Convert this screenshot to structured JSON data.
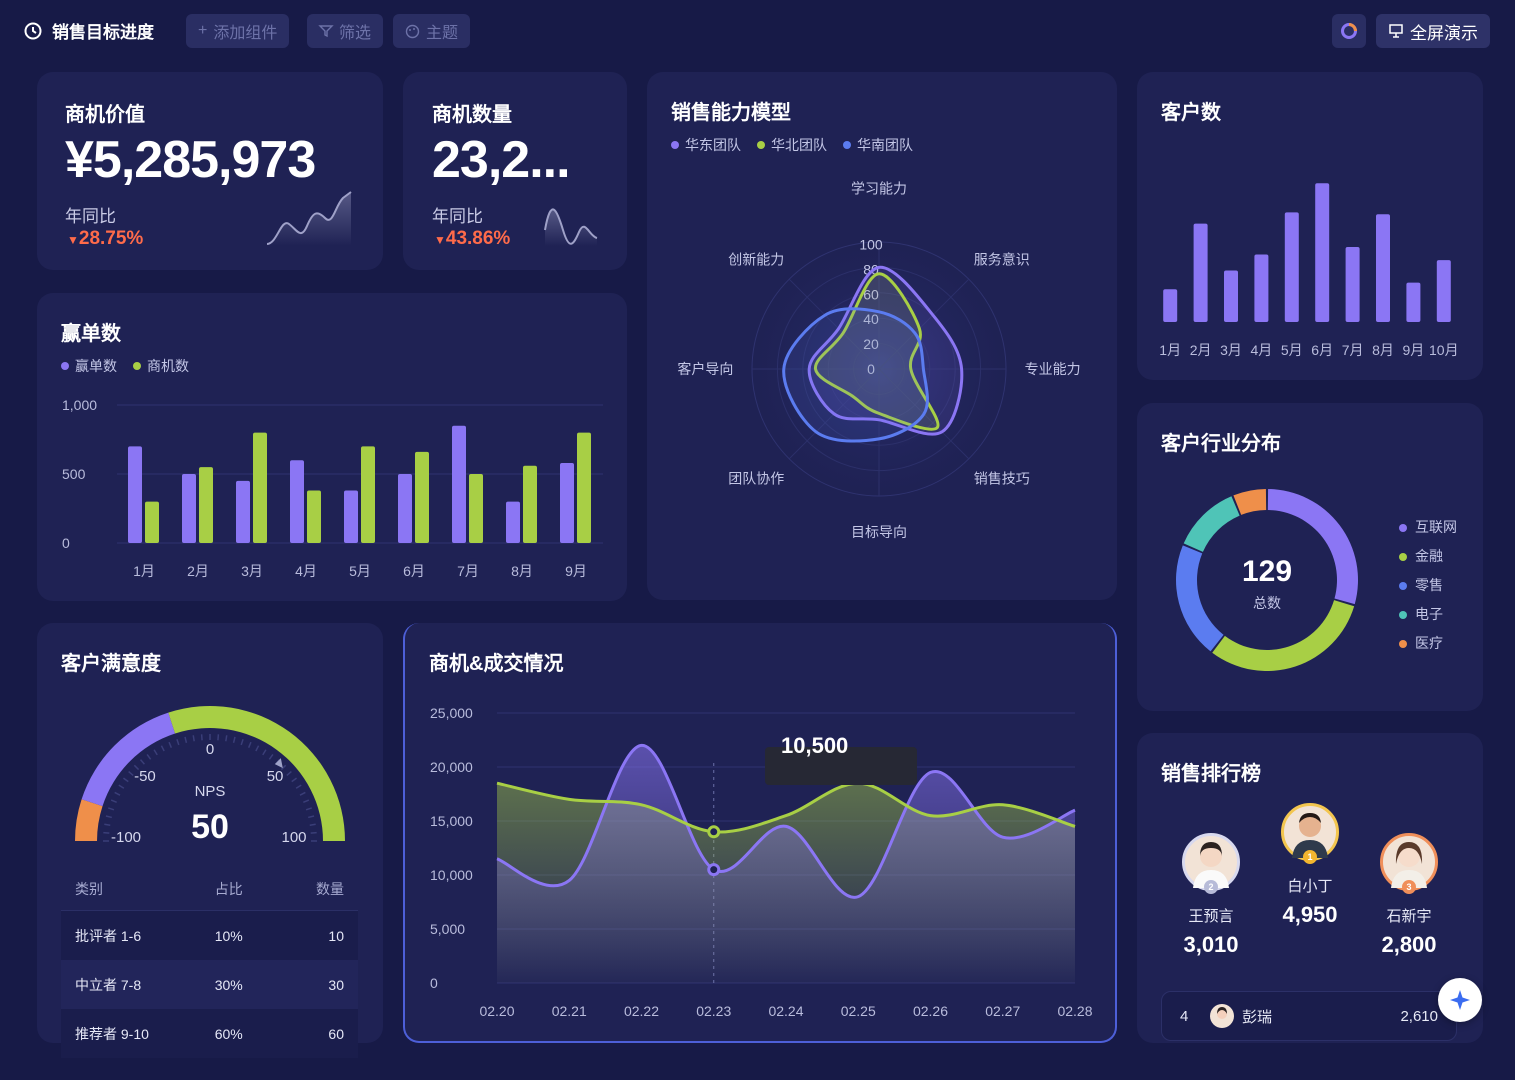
{
  "header": {
    "title": "销售目标进度",
    "add_widget": "添加组件",
    "filter": "筛选",
    "theme": "主题",
    "fullscreen": "全屏演示"
  },
  "opportunity_value": {
    "title": "商机价值",
    "value": "¥5,285,973",
    "yoy_label": "年同比",
    "yoy_value": "28.75%"
  },
  "opportunity_count": {
    "title": "商机数量",
    "value": "23,2...",
    "yoy_label": "年同比",
    "yoy_value": "43.86%"
  },
  "wins": {
    "title": "赢单数",
    "legend": [
      "赢单数",
      "商机数"
    ],
    "chart_data": {
      "type": "bar",
      "categories": [
        "1月",
        "2月",
        "3月",
        "4月",
        "5月",
        "6月",
        "7月",
        "8月",
        "9月"
      ],
      "series": [
        {
          "name": "赢单数",
          "values": [
            700,
            500,
            450,
            600,
            380,
            500,
            850,
            300,
            580
          ],
          "color": "#8b76f4"
        },
        {
          "name": "商机数",
          "values": [
            300,
            550,
            800,
            380,
            700,
            660,
            500,
            560,
            800
          ],
          "color": "#a8cf45"
        }
      ],
      "yticks": [
        "1,000",
        "500",
        "0"
      ],
      "ylim": [
        0,
        1000
      ]
    }
  },
  "radar": {
    "title": "销售能力模型",
    "legend": [
      {
        "name": "华东团队",
        "color": "#8b76f4"
      },
      {
        "name": "华北团队",
        "color": "#a8cf45"
      },
      {
        "name": "华南团队",
        "color": "#5b7cf0"
      }
    ],
    "chart_data": {
      "type": "radar",
      "axes": [
        "学习能力",
        "服务意识",
        "专业能力",
        "销售技巧",
        "目标导向",
        "团队协作",
        "客户导向",
        "创新能力"
      ],
      "range": [
        0,
        100
      ],
      "ticks": [
        "100",
        "80",
        "60",
        "40",
        "20",
        "0"
      ],
      "series": [
        {
          "name": "华东团队",
          "values": [
            80,
            60,
            65,
            70,
            40,
            50,
            55,
            45
          ]
        },
        {
          "name": "华北团队",
          "values": [
            75,
            45,
            25,
            65,
            35,
            30,
            50,
            40
          ]
        },
        {
          "name": "华南团队",
          "values": [
            45,
            40,
            35,
            50,
            55,
            70,
            75,
            60
          ]
        }
      ]
    }
  },
  "customers": {
    "title": "客户数",
    "chart_data": {
      "type": "bar",
      "categories": [
        "1月",
        "2月",
        "3月",
        "4月",
        "5月",
        "6月",
        "7月",
        "8月",
        "9月",
        "10月"
      ],
      "values": [
        35,
        105,
        55,
        72,
        117,
        148,
        80,
        115,
        42,
        66
      ],
      "ylim": [
        0,
        160
      ]
    }
  },
  "industry": {
    "title": "客户行业分布",
    "total": "129",
    "total_label": "总数",
    "chart_data": {
      "type": "pie",
      "labels": [
        "互联网",
        "金融",
        "零售",
        "电子",
        "医疗"
      ],
      "values": [
        38,
        40,
        27,
        16,
        8
      ],
      "colors": [
        "#8b76f4",
        "#a8cf45",
        "#5b7cf0",
        "#4fc4b7",
        "#ef8f4a"
      ]
    }
  },
  "satisfaction": {
    "title": "客户满意度",
    "gauge": {
      "label": "NPS",
      "value": "50",
      "ticks": [
        "-100",
        "-50",
        "0",
        "50",
        "100"
      ],
      "range": [
        -100,
        100
      ]
    },
    "table": {
      "headers": [
        "类别",
        "占比",
        "数量"
      ],
      "rows": [
        [
          "批评者 1-6",
          "10%",
          "10"
        ],
        [
          "中立者 7-8",
          "30%",
          "30"
        ],
        [
          "推荐者 9-10",
          "60%",
          "60"
        ]
      ]
    }
  },
  "deals": {
    "title": "商机&成交情况",
    "tooltip": "10,500",
    "chart_data": {
      "type": "area",
      "x": [
        "02.20",
        "02.21",
        "02.22",
        "02.23",
        "02.24",
        "02.25",
        "02.26",
        "02.27",
        "02.28"
      ],
      "yticks": [
        "25,000",
        "20,000",
        "15,000",
        "10,000",
        "5,000",
        "0"
      ],
      "ylim": [
        0,
        25000
      ],
      "series": [
        {
          "name": "series-purple",
          "values": [
            11500,
            9500,
            22000,
            10500,
            14500,
            8000,
            19500,
            13500,
            16000
          ],
          "color": "#8b76f4"
        },
        {
          "name": "series-green",
          "values": [
            18500,
            17000,
            16500,
            14000,
            15500,
            18500,
            15500,
            16500,
            14500
          ],
          "color": "#a8cf45"
        }
      ]
    }
  },
  "ranking": {
    "title": "销售排行榜",
    "top3": [
      {
        "rank": "2",
        "name": "王预言",
        "score": "3,010"
      },
      {
        "rank": "1",
        "name": "白小丁",
        "score": "4,950"
      },
      {
        "rank": "3",
        "name": "石新宇",
        "score": "2,800"
      }
    ],
    "row4": {
      "rank": "4",
      "name": "彭瑞",
      "score": "2,610"
    }
  }
}
